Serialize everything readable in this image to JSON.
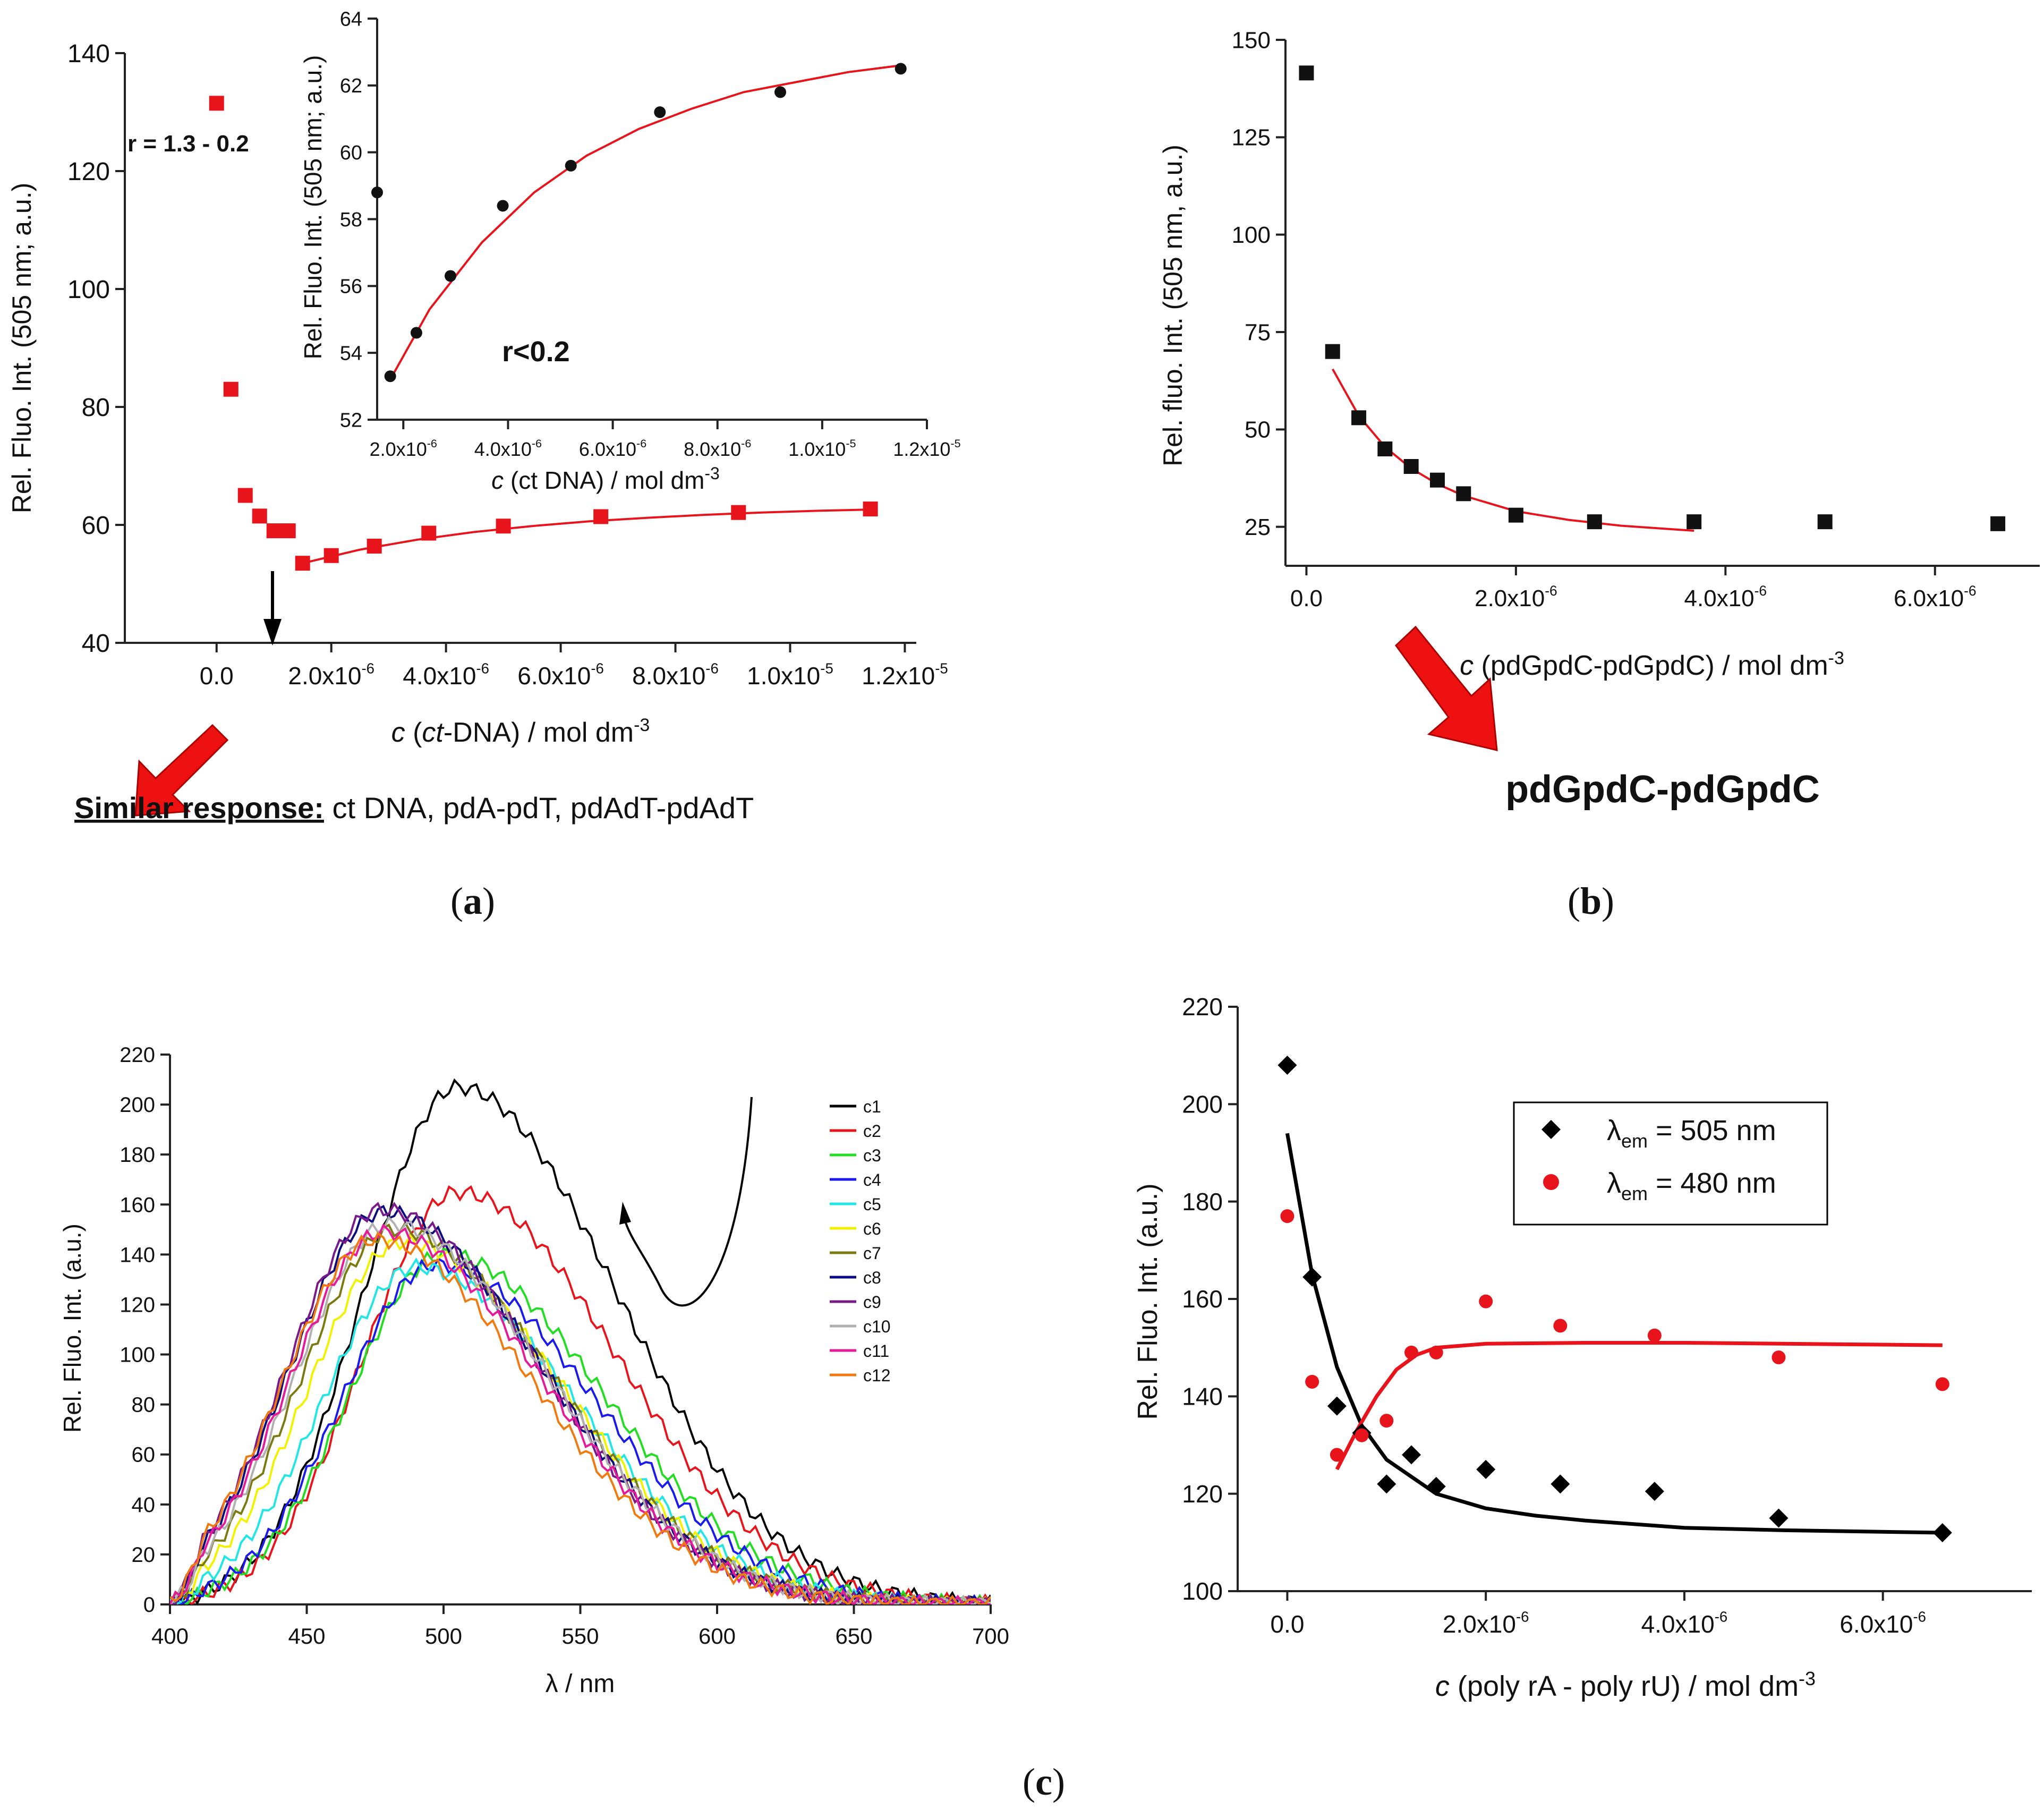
{
  "panels": {
    "a": {
      "label_open": "(",
      "label_letter": "a",
      "label_close": ")"
    },
    "b": {
      "label_open": "(",
      "label_letter": "b",
      "label_close": ")"
    },
    "c": {
      "label_open": "(",
      "label_letter": "c",
      "label_close": ")"
    }
  },
  "annotations": {
    "a_ratio": "r = 1.3 - 0.2",
    "a_inset_ratio": "r<0.2",
    "similar_bold": "Similar response:",
    "similar_text": " ct DNA, pdA-pdT, pdAdT-pdAdT",
    "b_label": "pdGpdC-pdGpdC"
  },
  "colors": {
    "red": "#e8141b",
    "black": "#111111",
    "arrow_red": "#ee1111"
  },
  "icons": {
    "arrow_a": "red-arrow-icon",
    "arrow_b": "red-arrow-icon",
    "arrow_down": "black-down-arrow-icon",
    "curved_arrow": "curved-arrow-icon"
  },
  "chart_data": [
    {
      "id": "a_main",
      "type": "scatter",
      "title": "",
      "ylabel": "Rel. Fluo. Int. (505 nm; a.u.)",
      "xlabel_italic": "c",
      "xlabel_pre": " (",
      "xlabel_italic2": "ct",
      "xlabel_rest": "-DNA) / mol dm",
      "xlabel_sup": "-3",
      "xlim": [
        -1.6e-06,
        1.22e-05
      ],
      "ylim": [
        40,
        140
      ],
      "xticks": [
        0,
        2e-06,
        4e-06,
        6e-06,
        8e-06,
        1e-05,
        1.2e-05
      ],
      "xtick_mant": [
        "0.0",
        "2.0x10",
        "4.0x10",
        "6.0x10",
        "8.0x10",
        "1.0x10",
        "1.2x10"
      ],
      "xtick_exp": [
        "",
        "-6",
        "-6",
        "-6",
        "-6",
        "-5",
        "-5"
      ],
      "yticks": [
        40,
        60,
        80,
        100,
        120,
        140
      ],
      "ytick_labels": [
        "40",
        "60",
        "80",
        "100",
        "120",
        "140"
      ],
      "series": [
        {
          "name": "points",
          "x": [
            0,
            2.5e-07,
            5e-07,
            7.5e-07,
            1e-06,
            1.25e-06,
            1.5e-06,
            2e-06,
            2.75e-06,
            3.7e-06,
            5e-06,
            6.7e-06,
            9.1e-06,
            1.14e-05
          ],
          "y": [
            131.5,
            83,
            65,
            61.5,
            59,
            59,
            53.5,
            54.8,
            56.4,
            58.6,
            59.8,
            61.4,
            62.1,
            62.7
          ]
        },
        {
          "name": "fit",
          "x": [
            1.5e-06,
            2.5e-06,
            3.5e-06,
            4.5e-06,
            5.5e-06,
            6.5e-06,
            7.5e-06,
            8.5e-06,
            9.5e-06,
            1.05e-05,
            1.14e-05
          ],
          "y": [
            53.5,
            55.8,
            57.5,
            58.8,
            59.8,
            60.6,
            61.2,
            61.7,
            62.1,
            62.4,
            62.6
          ]
        }
      ]
    },
    {
      "id": "a_inset",
      "type": "scatter",
      "ylabel": "Rel. Fluo. Int. (505 nm; a.u.)",
      "xlabel_italic": "c",
      "xlabel_rest": " (ct DNA) / mol dm",
      "xlabel_sup": "-3",
      "xlim": [
        1.5e-06,
        1.2e-05
      ],
      "ylim": [
        52,
        64
      ],
      "xticks": [
        2e-06,
        4e-06,
        6e-06,
        8e-06,
        1e-05,
        1.2e-05
      ],
      "xtick_mant": [
        "2.0x10",
        "4.0x10",
        "6.0x10",
        "8.0x10",
        "1.0x10",
        "1.2x10"
      ],
      "xtick_exp": [
        "-6",
        "-6",
        "-6",
        "-6",
        "-5",
        "-5"
      ],
      "yticks": [
        52,
        54,
        56,
        58,
        60,
        62,
        64
      ],
      "ytick_labels": [
        "52",
        "54",
        "56",
        "58",
        "60",
        "62",
        "64"
      ],
      "series": [
        {
          "name": "points",
          "x": [
            1.5e-06,
            1.75e-06,
            2.25e-06,
            2.9e-06,
            3.9e-06,
            5.2e-06,
            6.9e-06,
            9.2e-06,
            1.15e-05
          ],
          "y": [
            58.8,
            53.3,
            54.6,
            56.3,
            58.4,
            59.6,
            61.2,
            61.8,
            62.5
          ]
        },
        {
          "name": "fit",
          "x": [
            1.75e-06,
            2.5e-06,
            3.5e-06,
            4.5e-06,
            5.5e-06,
            6.5e-06,
            7.5e-06,
            8.5e-06,
            9.5e-06,
            1.05e-05,
            1.15e-05
          ],
          "y": [
            53.2,
            55.3,
            57.3,
            58.8,
            59.9,
            60.7,
            61.3,
            61.8,
            62.1,
            62.4,
            62.6
          ]
        }
      ]
    },
    {
      "id": "b",
      "type": "scatter",
      "ylabel": "Rel. fluo. Int. (505 nm, a.u.)",
      "xlabel_italic": "c",
      "xlabel_rest": " (pdGpdC-pdGpdC) / mol dm",
      "xlabel_sup": "-3",
      "xlim": [
        -2e-07,
        7e-06
      ],
      "ylim": [
        15,
        150
      ],
      "xticks": [
        0,
        2e-06,
        4e-06,
        6e-06
      ],
      "xtick_mant": [
        "0.0",
        "2.0x10",
        "4.0x10",
        "6.0x10"
      ],
      "xtick_exp": [
        "",
        "-6",
        "-6",
        "-6"
      ],
      "yticks": [
        25,
        50,
        75,
        100,
        125,
        150
      ],
      "ytick_labels": [
        "25",
        "50",
        "75",
        "100",
        "125",
        "150"
      ],
      "series": [
        {
          "name": "points",
          "x": [
            0,
            2.5e-07,
            5e-07,
            7.5e-07,
            1e-06,
            1.25e-06,
            1.5e-06,
            2e-06,
            2.75e-06,
            3.7e-06,
            4.95e-06,
            6.6e-06
          ],
          "y": [
            141.5,
            70,
            53,
            45,
            40.5,
            37,
            33.5,
            28,
            26.3,
            26.3,
            26.3,
            25.8
          ]
        },
        {
          "name": "fit",
          "x": [
            2.5e-07,
            5e-07,
            7.5e-07,
            1e-06,
            1.25e-06,
            1.5e-06,
            2e-06,
            2.5e-06,
            3e-06,
            3.7e-06
          ],
          "y": [
            65.5,
            53.5,
            45.5,
            40,
            36,
            33,
            29,
            26.8,
            25.3,
            24
          ]
        }
      ]
    },
    {
      "id": "c_spectra",
      "type": "line",
      "ylabel": "Rel. Fluo. Int. (a.u.)",
      "xlabel": "λ / nm",
      "xlim": [
        400,
        700
      ],
      "ylim": [
        0,
        220
      ],
      "xticks": [
        400,
        450,
        500,
        550,
        600,
        650,
        700
      ],
      "xtick_labels": [
        "400",
        "450",
        "500",
        "550",
        "600",
        "650",
        "700"
      ],
      "yticks": [
        0,
        20,
        40,
        60,
        80,
        100,
        120,
        140,
        160,
        180,
        200,
        220
      ],
      "ytick_labels": [
        "0",
        "20",
        "40",
        "60",
        "80",
        "100",
        "120",
        "140",
        "160",
        "180",
        "200",
        "220"
      ],
      "series": [
        {
          "name": "c1",
          "color": "#000000",
          "peak": 505,
          "amp": 207
        },
        {
          "name": "c2",
          "color": "#e8141b",
          "peak": 505,
          "amp": 165
        },
        {
          "name": "c3",
          "color": "#22dd22",
          "peak": 500,
          "amp": 140
        },
        {
          "name": "c4",
          "color": "#1a1aee",
          "peak": 497,
          "amp": 136
        },
        {
          "name": "c5",
          "color": "#22e6e6",
          "peak": 490,
          "amp": 135
        },
        {
          "name": "c6",
          "color": "#f2f200",
          "peak": 485,
          "amp": 145
        },
        {
          "name": "c7",
          "color": "#7a7a10",
          "peak": 482,
          "amp": 150
        },
        {
          "name": "c8",
          "color": "#0b0b80",
          "peak": 478,
          "amp": 157
        },
        {
          "name": "c9",
          "color": "#7a1a8a",
          "peak": 477,
          "amp": 158
        },
        {
          "name": "c10",
          "color": "#b0b0b0",
          "peak": 480,
          "amp": 152
        },
        {
          "name": "c11",
          "color": "#e6199a",
          "peak": 478,
          "amp": 149
        },
        {
          "name": "c12",
          "color": "#f07a10",
          "peak": 475,
          "amp": 146
        }
      ]
    },
    {
      "id": "c_titration",
      "type": "scatter",
      "ylabel": "Rel. Fluo. Int. (a.u.)",
      "xlabel_italic": "c",
      "xlabel_rest": " (poly rA - poly rU) / mol dm",
      "xlabel_sup": "-3",
      "xlim": [
        -5e-07,
        7.5e-06
      ],
      "ylim": [
        100,
        220
      ],
      "xticks": [
        0,
        2e-06,
        4e-06,
        6e-06
      ],
      "xtick_mant": [
        "0.0",
        "2.0x10",
        "4.0x10",
        "6.0x10"
      ],
      "xtick_exp": [
        "",
        "-6",
        "-6",
        "-6"
      ],
      "yticks": [
        100,
        120,
        140,
        160,
        180,
        200,
        220
      ],
      "ytick_labels": [
        "100",
        "120",
        "140",
        "160",
        "180",
        "200",
        "220"
      ],
      "legend": [
        {
          "lambda": "λ",
          "sub": "em",
          "rest": " = 505 nm"
        },
        {
          "lambda": "λ",
          "sub": "em",
          "rest": " = 480 nm"
        }
      ],
      "series": [
        {
          "name": "λem = 505 nm",
          "color": "#000000",
          "marker": "diamond",
          "x": [
            0,
            2.5e-07,
            5e-07,
            7.5e-07,
            1e-06,
            1.25e-06,
            1.5e-06,
            2e-06,
            2.75e-06,
            3.7e-06,
            4.95e-06,
            6.6e-06
          ],
          "y": [
            208,
            164.5,
            138,
            132.5,
            122,
            128,
            121.5,
            125,
            122,
            120.5,
            115,
            112
          ]
        },
        {
          "name": "λem = 480 nm",
          "color": "#e8141b",
          "marker": "circle",
          "x": [
            0,
            2.5e-07,
            5e-07,
            7.5e-07,
            1e-06,
            1.25e-06,
            1.5e-06,
            2e-06,
            2.75e-06,
            3.7e-06,
            4.95e-06,
            6.6e-06
          ],
          "y": [
            177,
            143,
            128,
            132,
            135,
            149,
            149,
            159.5,
            154.5,
            152.5,
            148,
            142.5
          ]
        },
        {
          "name": "fit 505",
          "color": "#000000",
          "marker": "none",
          "x": [
            0,
            2.5e-07,
            5e-07,
            7.5e-07,
            1e-06,
            1.5e-06,
            2e-06,
            2.5e-06,
            3e-06,
            4e-06,
            5e-06,
            6.6e-06
          ],
          "y": [
            194,
            165,
            146,
            134,
            127,
            120,
            117,
            115.5,
            114.5,
            113,
            112.5,
            112
          ]
        },
        {
          "name": "fit 480",
          "color": "#e8141b",
          "marker": "none",
          "x": [
            5e-07,
            7e-07,
            9e-07,
            1.1e-06,
            1.3e-06,
            1.5e-06,
            2e-06,
            3e-06,
            4e-06,
            5e-06,
            6.6e-06
          ],
          "y": [
            125,
            133,
            140,
            145.5,
            148.5,
            150,
            150.8,
            151,
            151,
            150.8,
            150.5
          ]
        }
      ]
    }
  ]
}
